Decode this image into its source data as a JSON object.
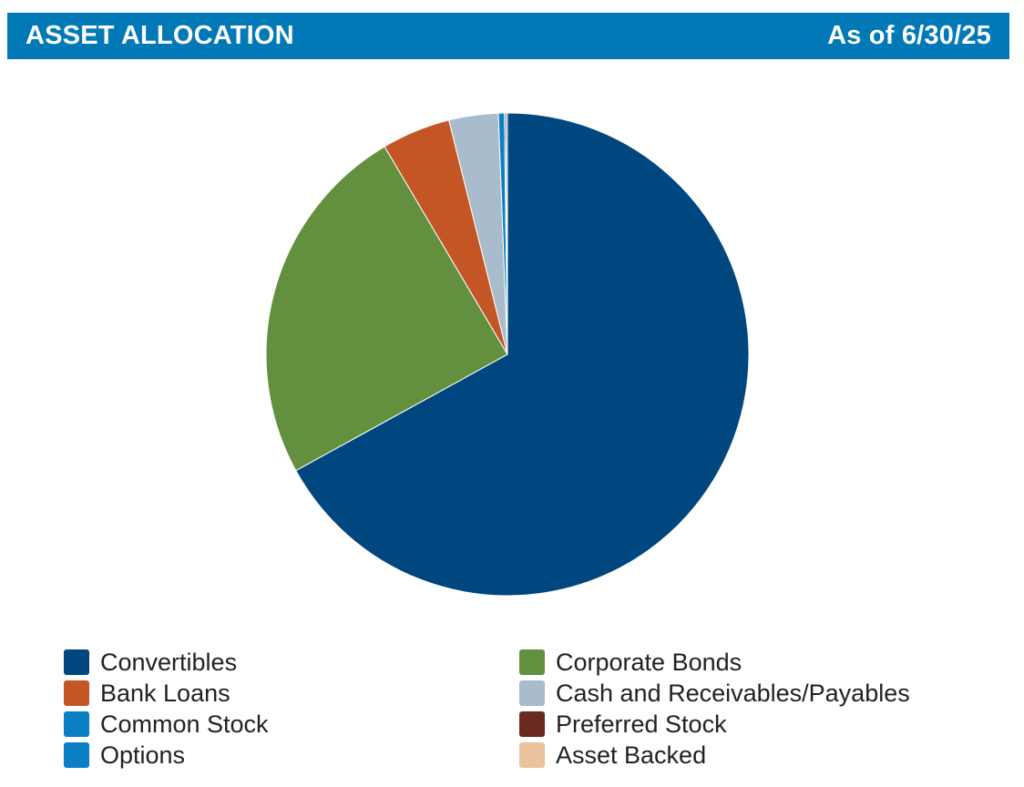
{
  "header": {
    "title": "ASSET ALLOCATION",
    "date": "As of 6/30/25"
  },
  "chart_data": {
    "type": "pie",
    "title": "ASSET ALLOCATION",
    "legend_position": "bottom",
    "slices": [
      {
        "label": "Convertibles",
        "value": 67.0,
        "color": "#00467f"
      },
      {
        "label": "Corporate Bonds",
        "value": 24.5,
        "color": "#62903e"
      },
      {
        "label": "Bank Loans",
        "value": 4.6,
        "color": "#c45626"
      },
      {
        "label": "Cash and Receivables/Payables",
        "value": 3.3,
        "color": "#a8bccb"
      },
      {
        "label": "Common Stock",
        "value": 0.4,
        "color": "#0a7fc4"
      },
      {
        "label": "Preferred Stock",
        "value": 0.1,
        "color": "#6b2a20"
      },
      {
        "label": "Options",
        "value": 0.1,
        "color": "#0a7fc4"
      },
      {
        "label": "Asset Backed",
        "value": 0.0,
        "color": "#e8c39c"
      }
    ]
  }
}
